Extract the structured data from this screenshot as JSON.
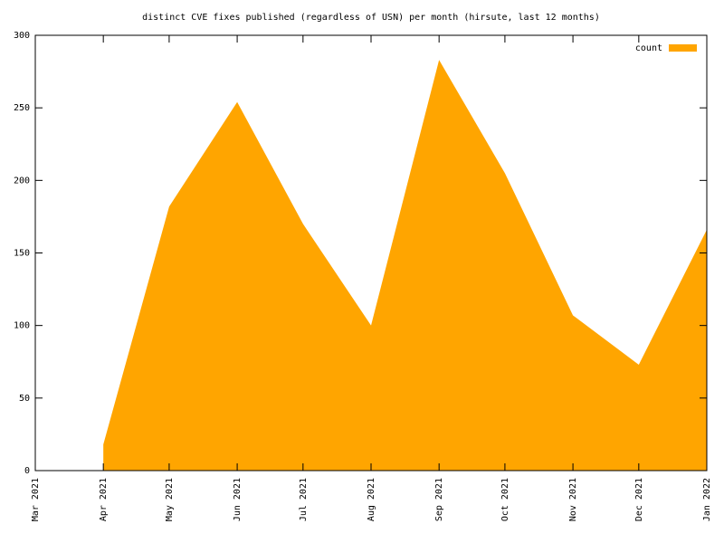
{
  "chart_data": {
    "type": "area",
    "title": "distinct CVE fixes published (regardless of USN) per month (hirsute, last 12 months)",
    "x": [
      "Apr 2021",
      "May 2021",
      "Jun 2021",
      "Jul 2021",
      "Aug 2021",
      "Sep 2021",
      "Oct 2021",
      "Nov 2021",
      "Dec 2021",
      "Jan 2022"
    ],
    "series": [
      {
        "name": "count",
        "color": "#ffa500",
        "values": [
          18,
          182,
          254,
          170,
          100,
          283,
          205,
          107,
          73,
          166
        ]
      }
    ],
    "xlim": [
      "Mar 2021",
      "Jan 2022"
    ],
    "xticks": [
      "Mar 2021",
      "Apr 2021",
      "May 2021",
      "Jun 2021",
      "Jul 2021",
      "Aug 2021",
      "Sep 2021",
      "Oct 2021",
      "Nov 2021",
      "Dec 2021",
      "Jan 2022"
    ],
    "ylim": [
      0,
      300
    ],
    "yticks": [
      0,
      50,
      100,
      150,
      200,
      250,
      300
    ],
    "legend": "top-right"
  }
}
